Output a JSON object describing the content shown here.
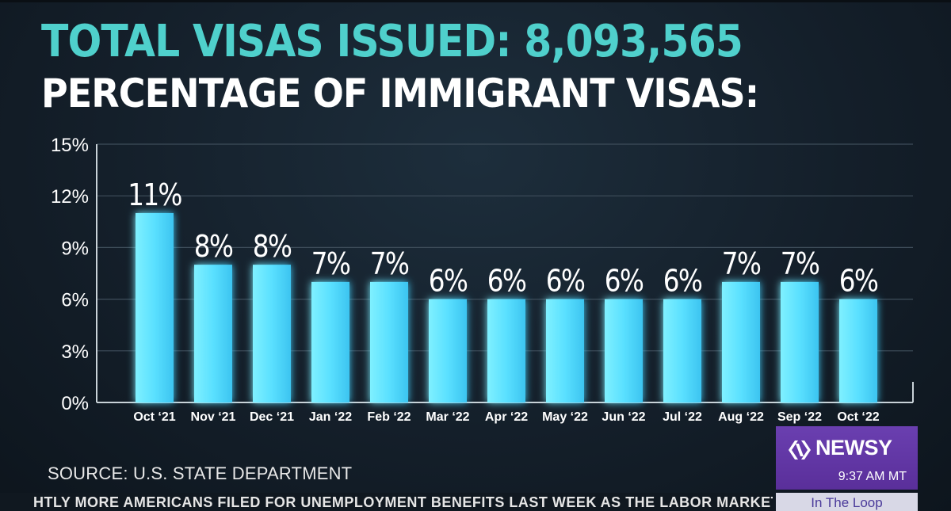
{
  "titles": {
    "line1": "TOTAL VISAS ISSUED: 8,093,565",
    "line2": "PERCENTAGE OF IMMIGRANT VISAS:"
  },
  "source": "SOURCE: U.S. STATE DEPARTMENT",
  "ticker": "HTLY MORE AMERICANS FILED FOR UNEMPLOYMENT BENEFITS LAST WEEK AS THE LABOR MARKET CONTIN",
  "branding": {
    "name": "NEWSY",
    "time": "9:37 AM MT",
    "program": "In The Loop",
    "color": "#5a2f9a"
  },
  "colors": {
    "title_accent": "#4fd0cc",
    "bar": "#5ae0ff"
  },
  "chart_data": {
    "type": "bar",
    "categories": [
      "Oct ‘21",
      "Nov ‘21",
      "Dec ‘21",
      "Jan ‘22",
      "Feb ‘22",
      "Mar ‘22",
      "Apr ‘22",
      "May ‘22",
      "Jun ‘22",
      "Jul ‘22",
      "Aug ‘22",
      "Sep ‘22",
      "Oct ‘22"
    ],
    "values": [
      11,
      8,
      8,
      7,
      7,
      6,
      6,
      6,
      6,
      6,
      7,
      7,
      6
    ],
    "value_labels": [
      "11%",
      "8%",
      "8%",
      "7%",
      "7%",
      "6%",
      "6%",
      "6%",
      "6%",
      "6%",
      "7%",
      "7%",
      "6%"
    ],
    "y_ticks": [
      0,
      3,
      6,
      9,
      12,
      15
    ],
    "y_tick_labels": [
      "0%",
      "3%",
      "6%",
      "9%",
      "12%",
      "15%"
    ],
    "ylim": [
      0,
      15
    ],
    "grid": true
  }
}
